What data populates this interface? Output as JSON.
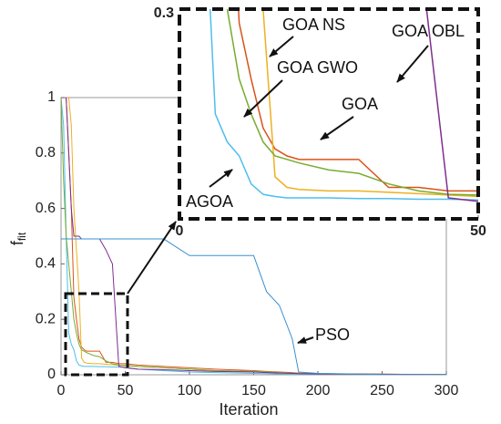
{
  "chart_data": {
    "type": "line",
    "xlabel": "Iteration",
    "ylabel": {
      "main": "f",
      "sub": "fit"
    },
    "x": [
      0,
      2,
      4,
      6,
      8,
      10,
      12,
      14,
      16,
      18,
      20,
      25,
      30,
      35,
      40,
      45,
      50,
      60,
      80,
      100,
      120,
      150,
      160,
      170,
      180,
      185,
      200,
      250,
      300
    ],
    "series": [
      {
        "name": "AGOA",
        "color": "#4dbeee",
        "values": [
          1,
          0.9,
          0.5,
          0.15,
          0.11,
          0.09,
          0.05,
          0.035,
          0.032,
          0.03,
          0.03,
          0.03,
          0.029,
          0.029,
          0.028,
          0.028,
          0.027,
          0.02,
          0.015,
          0.01,
          0.008,
          0.005,
          0.004,
          0.003,
          0.002,
          0.002,
          0.001,
          0.001,
          0.001
        ]
      },
      {
        "name": "GOA",
        "color": "#d95319",
        "values": [
          1,
          1,
          1,
          0.8,
          0.6,
          0.28,
          0.2,
          0.13,
          0.1,
          0.09,
          0.085,
          0.085,
          0.085,
          0.045,
          0.045,
          0.04,
          0.04,
          0.035,
          0.03,
          0.025,
          0.02,
          0.015,
          0.012,
          0.01,
          0.008,
          0.006,
          0.004,
          0.002,
          0.001
        ]
      },
      {
        "name": "GOA NS",
        "color": "#edb120",
        "values": [
          1,
          1,
          1,
          1,
          0.9,
          0.6,
          0.45,
          0.3,
          0.06,
          0.045,
          0.042,
          0.04,
          0.04,
          0.038,
          0.036,
          0.034,
          0.032,
          0.03,
          0.025,
          0.02,
          0.015,
          0.012,
          0.01,
          0.008,
          0.006,
          0.005,
          0.003,
          0.002,
          0.001
        ]
      },
      {
        "name": "GOA GWO",
        "color": "#77ac30",
        "values": [
          1,
          0.7,
          0.5,
          0.4,
          0.3,
          0.2,
          0.15,
          0.11,
          0.09,
          0.085,
          0.08,
          0.07,
          0.065,
          0.05,
          0.04,
          0.035,
          0.034,
          0.03,
          0.025,
          0.02,
          0.015,
          0.012,
          0.01,
          0.008,
          0.006,
          0.005,
          0.003,
          0.002,
          0.001
        ]
      },
      {
        "name": "GOA OBL",
        "color": "#7e2f8e",
        "values": [
          1,
          1,
          1,
          0.8,
          0.6,
          0.5,
          0.5,
          0.5,
          0.49,
          0.49,
          0.49,
          0.49,
          0.49,
          0.45,
          0.4,
          0.03,
          0.025,
          0.02,
          0.018,
          0.015,
          0.012,
          0.01,
          0.008,
          0.006,
          0.005,
          0.004,
          0.003,
          0.002,
          0.001
        ]
      },
      {
        "name": "PSO",
        "color": "#3a8fd0",
        "values": [
          0.49,
          0.49,
          0.49,
          0.49,
          0.49,
          0.49,
          0.49,
          0.49,
          0.49,
          0.49,
          0.49,
          0.49,
          0.49,
          0.49,
          0.49,
          0.49,
          0.49,
          0.49,
          0.49,
          0.43,
          0.43,
          0.43,
          0.3,
          0.25,
          0.13,
          0.01,
          0.005,
          0.001,
          0.001
        ]
      }
    ],
    "xlim": [
      0,
      300
    ],
    "ylim": [
      0,
      1
    ],
    "xticks": [
      0,
      50,
      100,
      150,
      200,
      250,
      300
    ],
    "yticks": [
      0,
      0.2,
      0.4,
      0.6,
      0.8,
      1
    ],
    "inset": {
      "xlim": [
        0,
        50
      ],
      "ylim": [
        0,
        0.3
      ],
      "xticks": [
        0,
        50
      ],
      "yticks": [
        0.3
      ]
    },
    "annotations": [
      "GOA NS",
      "GOA GWO",
      "GOA",
      "GOA OBL",
      "AGOA",
      "PSO"
    ]
  }
}
